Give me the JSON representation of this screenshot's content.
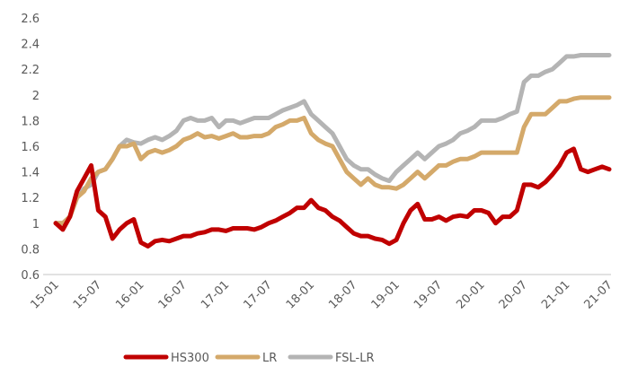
{
  "chart_data": {
    "type": "line",
    "title": "",
    "xlabel": "",
    "ylabel": "",
    "ylim": [
      0.6,
      2.6
    ],
    "yticks": [
      "2.6",
      "2.4",
      "2.2",
      "2",
      "1.8",
      "1.6",
      "1.4",
      "1.2",
      "1",
      "0.8",
      "0.6"
    ],
    "xticks": [
      "15-01",
      "15-07",
      "16-01",
      "16-07",
      "17-01",
      "17-07",
      "18-01",
      "18-07",
      "19-01",
      "19-07",
      "20-01",
      "20-07",
      "21-01",
      "21-07"
    ],
    "grid": false,
    "legend": "bottom",
    "x": [
      "15-01",
      "15-02",
      "15-03",
      "15-04",
      "15-05",
      "15-06",
      "15-07",
      "15-08",
      "15-09",
      "15-10",
      "15-11",
      "15-12",
      "16-01",
      "16-02",
      "16-03",
      "16-04",
      "16-05",
      "16-06",
      "16-07",
      "16-08",
      "16-09",
      "16-10",
      "16-11",
      "16-12",
      "17-01",
      "17-02",
      "17-03",
      "17-04",
      "17-05",
      "17-06",
      "17-07",
      "17-08",
      "17-09",
      "17-10",
      "17-11",
      "17-12",
      "18-01",
      "18-02",
      "18-03",
      "18-04",
      "18-05",
      "18-06",
      "18-07",
      "18-08",
      "18-09",
      "18-10",
      "18-11",
      "18-12",
      "19-01",
      "19-02",
      "19-03",
      "19-04",
      "19-05",
      "19-06",
      "19-07",
      "19-08",
      "19-09",
      "19-10",
      "19-11",
      "19-12",
      "20-01",
      "20-02",
      "20-03",
      "20-04",
      "20-05",
      "20-06",
      "20-07",
      "20-08",
      "20-09",
      "20-10",
      "20-11",
      "20-12",
      "21-01",
      "21-02",
      "21-03",
      "21-04",
      "21-05",
      "21-06",
      "21-07"
    ],
    "series": [
      {
        "name": "HS300",
        "color": "#c00000",
        "values": [
          1.0,
          0.95,
          1.05,
          1.25,
          1.35,
          1.45,
          1.1,
          1.05,
          0.88,
          0.95,
          1.0,
          1.03,
          0.85,
          0.82,
          0.86,
          0.87,
          0.86,
          0.88,
          0.9,
          0.9,
          0.92,
          0.93,
          0.95,
          0.95,
          0.94,
          0.96,
          0.96,
          0.96,
          0.95,
          0.97,
          1.0,
          1.02,
          1.05,
          1.08,
          1.12,
          1.12,
          1.18,
          1.12,
          1.1,
          1.05,
          1.02,
          0.97,
          0.92,
          0.9,
          0.9,
          0.88,
          0.87,
          0.84,
          0.87,
          1.0,
          1.1,
          1.15,
          1.03,
          1.03,
          1.05,
          1.02,
          1.05,
          1.06,
          1.05,
          1.1,
          1.1,
          1.08,
          1.0,
          1.05,
          1.05,
          1.1,
          1.3,
          1.3,
          1.28,
          1.32,
          1.38,
          1.45,
          1.55,
          1.58,
          1.42,
          1.4,
          1.42,
          1.44,
          1.42
        ]
      },
      {
        "name": "LR",
        "color": "#d4a96a",
        "values": [
          1.0,
          1.0,
          1.05,
          1.2,
          1.25,
          1.35,
          1.4,
          1.42,
          1.5,
          1.6,
          1.6,
          1.62,
          1.5,
          1.55,
          1.57,
          1.55,
          1.57,
          1.6,
          1.65,
          1.67,
          1.7,
          1.67,
          1.68,
          1.66,
          1.68,
          1.7,
          1.67,
          1.67,
          1.68,
          1.68,
          1.7,
          1.75,
          1.77,
          1.8,
          1.8,
          1.82,
          1.7,
          1.65,
          1.62,
          1.6,
          1.5,
          1.4,
          1.35,
          1.3,
          1.35,
          1.3,
          1.28,
          1.28,
          1.27,
          1.3,
          1.35,
          1.4,
          1.35,
          1.4,
          1.45,
          1.45,
          1.48,
          1.5,
          1.5,
          1.52,
          1.55,
          1.55,
          1.55,
          1.55,
          1.55,
          1.55,
          1.75,
          1.85,
          1.85,
          1.85,
          1.9,
          1.95,
          1.95,
          1.97,
          1.98,
          1.98,
          1.98,
          1.98,
          1.98
        ]
      },
      {
        "name": "FSL-LR",
        "color": "#b4b4b4",
        "values": [
          1.0,
          1.0,
          1.05,
          1.2,
          1.27,
          1.3,
          1.4,
          1.42,
          1.5,
          1.6,
          1.65,
          1.63,
          1.62,
          1.65,
          1.67,
          1.65,
          1.68,
          1.72,
          1.8,
          1.82,
          1.8,
          1.8,
          1.82,
          1.75,
          1.8,
          1.8,
          1.78,
          1.8,
          1.82,
          1.82,
          1.82,
          1.85,
          1.88,
          1.9,
          1.92,
          1.95,
          1.85,
          1.8,
          1.75,
          1.7,
          1.6,
          1.5,
          1.45,
          1.42,
          1.42,
          1.38,
          1.35,
          1.33,
          1.4,
          1.45,
          1.5,
          1.55,
          1.5,
          1.55,
          1.6,
          1.62,
          1.65,
          1.7,
          1.72,
          1.75,
          1.8,
          1.8,
          1.8,
          1.82,
          1.85,
          1.87,
          2.1,
          2.15,
          2.15,
          2.18,
          2.2,
          2.25,
          2.3,
          2.3,
          2.31,
          2.31,
          2.31,
          2.31,
          2.31
        ]
      }
    ]
  }
}
